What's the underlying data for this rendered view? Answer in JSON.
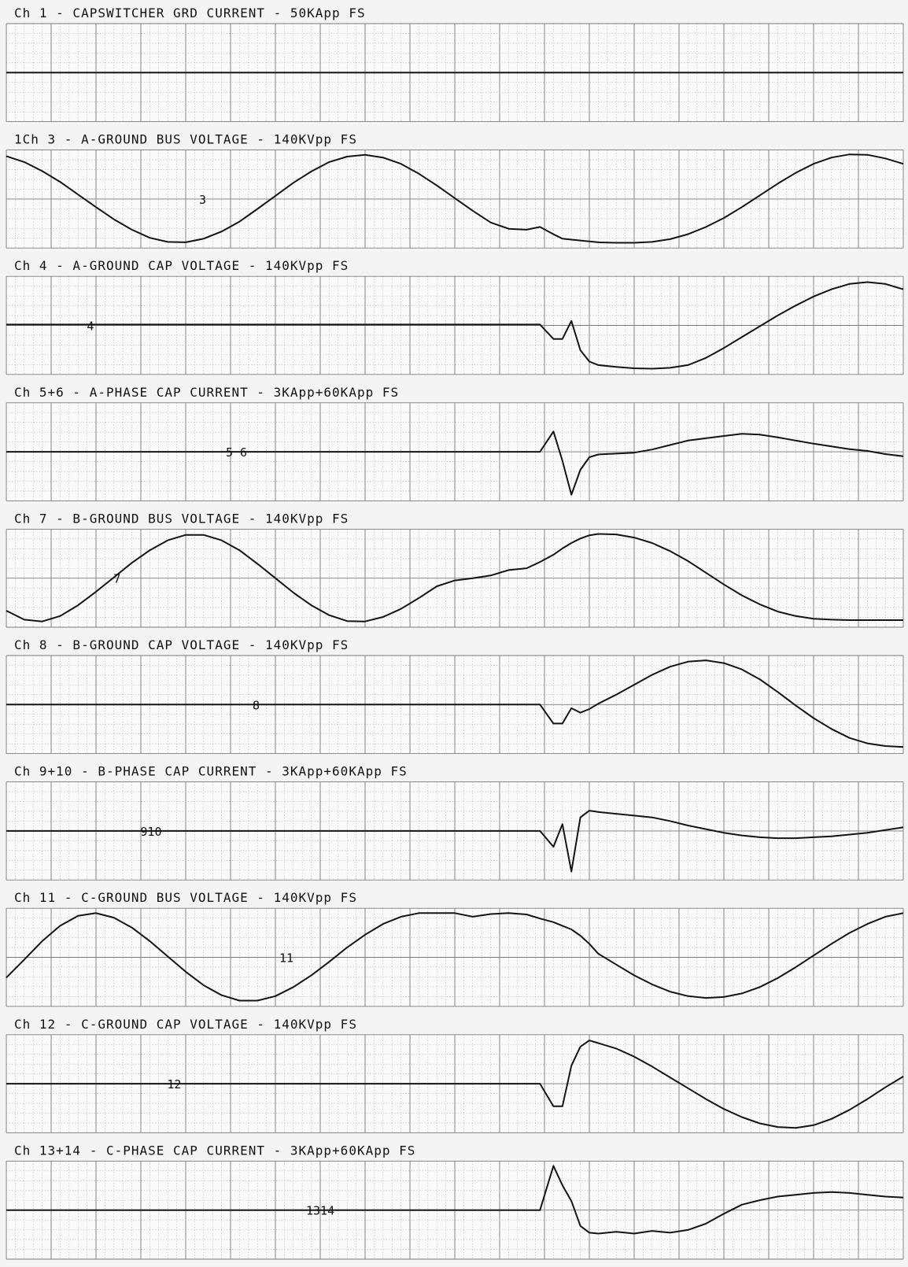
{
  "chart_data": {
    "type": "line",
    "title": "",
    "grid": true,
    "x": [
      0.0,
      0.02,
      0.04,
      0.06,
      0.08,
      0.1,
      0.12,
      0.14,
      0.16,
      0.18,
      0.2,
      0.22,
      0.24,
      0.26,
      0.28,
      0.3,
      0.32,
      0.34,
      0.36,
      0.38,
      0.4,
      0.42,
      0.44,
      0.46,
      0.48,
      0.5,
      0.52,
      0.54,
      0.56,
      0.58,
      0.595,
      0.61,
      0.62,
      0.63,
      0.64,
      0.65,
      0.66,
      0.68,
      0.7,
      0.72,
      0.74,
      0.76,
      0.78,
      0.8,
      0.82,
      0.84,
      0.86,
      0.88,
      0.9,
      0.92,
      0.94,
      0.96,
      0.98,
      1.0
    ],
    "series": [
      {
        "label": "Ch 1 - CAPSWITCHER GRD CURRENT - 50KApp FS",
        "marker": "",
        "values": [
          0.0,
          0.0,
          0.0,
          0.0,
          0.0,
          0.0,
          0.0,
          0.0,
          0.0,
          0.0,
          0.0,
          0.0,
          0.0,
          0.0,
          0.0,
          0.0,
          0.0,
          0.0,
          0.0,
          0.0,
          0.0,
          0.0,
          0.0,
          0.0,
          0.0,
          0.0,
          0.0,
          0.0,
          0.0,
          0.0,
          0.0,
          0.0,
          0.0,
          0.0,
          0.0,
          0.0,
          0.0,
          0.0,
          0.0,
          0.0,
          0.0,
          0.0,
          0.0,
          0.0,
          0.0,
          0.0,
          0.0,
          0.0,
          0.0,
          0.0,
          0.0,
          0.0,
          0.0,
          0.0
        ]
      },
      {
        "label": "1Ch 3 - A-GROUND BUS VOLTAGE - 140KVpp FS",
        "marker": "3",
        "values": [
          0.95,
          0.82,
          0.62,
          0.38,
          0.1,
          -0.18,
          -0.45,
          -0.68,
          -0.86,
          -0.95,
          -0.96,
          -0.88,
          -0.72,
          -0.5,
          -0.22,
          0.07,
          0.36,
          0.61,
          0.82,
          0.94,
          0.98,
          0.92,
          0.78,
          0.56,
          0.3,
          0.02,
          -0.26,
          -0.52,
          -0.66,
          -0.68,
          -0.62,
          -0.78,
          -0.88,
          -0.9,
          -0.92,
          -0.94,
          -0.96,
          -0.97,
          -0.97,
          -0.95,
          -0.89,
          -0.78,
          -0.62,
          -0.42,
          -0.18,
          0.08,
          0.34,
          0.58,
          0.78,
          0.92,
          0.99,
          0.98,
          0.9,
          0.78
        ]
      },
      {
        "label": "Ch 4 - A-GROUND CAP VOLTAGE - 140KVpp FS",
        "marker": "4",
        "values": [
          0.02,
          0.02,
          0.02,
          0.02,
          0.02,
          0.02,
          0.02,
          0.02,
          0.02,
          0.02,
          0.02,
          0.02,
          0.02,
          0.02,
          0.02,
          0.02,
          0.02,
          0.02,
          0.02,
          0.02,
          0.02,
          0.02,
          0.02,
          0.02,
          0.02,
          0.02,
          0.02,
          0.02,
          0.02,
          0.02,
          0.02,
          -0.3,
          -0.3,
          0.1,
          -0.55,
          -0.8,
          -0.88,
          -0.92,
          -0.95,
          -0.96,
          -0.94,
          -0.88,
          -0.72,
          -0.5,
          -0.26,
          -0.02,
          0.22,
          0.44,
          0.64,
          0.8,
          0.92,
          0.96,
          0.92,
          0.8
        ]
      },
      {
        "label": "Ch 5+6 - A-PHASE CAP CURRENT - 3KApp+60KApp FS",
        "marker": "5 6",
        "values": [
          0.0,
          0.0,
          0.0,
          0.0,
          0.0,
          0.0,
          0.0,
          0.0,
          0.0,
          0.0,
          0.0,
          0.0,
          0.0,
          0.0,
          0.0,
          0.0,
          0.0,
          0.0,
          0.0,
          0.0,
          0.0,
          0.0,
          0.0,
          0.0,
          0.0,
          0.0,
          0.0,
          0.0,
          0.0,
          0.0,
          0.0,
          0.45,
          -0.2,
          -0.95,
          -0.4,
          -0.12,
          -0.06,
          -0.04,
          -0.02,
          0.05,
          0.15,
          0.25,
          0.3,
          0.35,
          0.4,
          0.38,
          0.32,
          0.25,
          0.18,
          0.12,
          0.06,
          0.02,
          -0.05,
          -0.1
        ]
      },
      {
        "label": "Ch 7 - B-GROUND BUS VOLTAGE - 140KVpp FS",
        "marker": "7",
        "values": [
          -0.72,
          -0.92,
          -0.96,
          -0.84,
          -0.6,
          -0.3,
          0.02,
          0.34,
          0.62,
          0.84,
          0.96,
          0.96,
          0.84,
          0.62,
          0.32,
          0.0,
          -0.32,
          -0.6,
          -0.82,
          -0.95,
          -0.96,
          -0.86,
          -0.68,
          -0.44,
          -0.18,
          -0.05,
          0.0,
          0.06,
          0.18,
          0.22,
          0.36,
          0.52,
          0.66,
          0.78,
          0.88,
          0.95,
          0.98,
          0.97,
          0.9,
          0.78,
          0.6,
          0.38,
          0.12,
          -0.14,
          -0.38,
          -0.58,
          -0.74,
          -0.84,
          -0.9,
          -0.92,
          -0.93,
          -0.93,
          -0.93,
          -0.93
        ]
      },
      {
        "label": "Ch 8 - B-GROUND CAP VOLTAGE - 140KVpp FS",
        "marker": "8",
        "values": [
          0.0,
          0.0,
          0.0,
          0.0,
          0.0,
          0.0,
          0.0,
          0.0,
          0.0,
          0.0,
          0.0,
          0.0,
          0.0,
          0.0,
          0.0,
          0.0,
          0.0,
          0.0,
          0.0,
          0.0,
          0.0,
          0.0,
          0.0,
          0.0,
          0.0,
          0.0,
          0.0,
          0.0,
          0.0,
          0.0,
          0.0,
          -0.42,
          -0.42,
          -0.08,
          -0.18,
          -0.1,
          0.02,
          0.22,
          0.44,
          0.66,
          0.84,
          0.95,
          0.98,
          0.92,
          0.78,
          0.56,
          0.28,
          -0.02,
          -0.3,
          -0.54,
          -0.74,
          -0.86,
          -0.92,
          -0.94
        ]
      },
      {
        "label": "Ch 9+10 - B-PHASE CAP CURRENT - 3KApp+60KApp FS",
        "marker": "910",
        "values": [
          0.0,
          0.0,
          0.0,
          0.0,
          0.0,
          0.0,
          0.0,
          0.0,
          0.0,
          0.0,
          0.0,
          0.0,
          0.0,
          0.0,
          0.0,
          0.0,
          0.0,
          0.0,
          0.0,
          0.0,
          0.0,
          0.0,
          0.0,
          0.0,
          0.0,
          0.0,
          0.0,
          0.0,
          0.0,
          0.0,
          0.0,
          -0.35,
          0.15,
          -0.9,
          0.3,
          0.45,
          0.42,
          0.38,
          0.34,
          0.3,
          0.22,
          0.12,
          0.04,
          -0.04,
          -0.1,
          -0.14,
          -0.16,
          -0.16,
          -0.14,
          -0.12,
          -0.08,
          -0.04,
          0.02,
          0.08
        ]
      },
      {
        "label": "Ch 11 - C-GROUND BUS VOLTAGE - 140KVpp FS",
        "marker": "11",
        "values": [
          -0.45,
          -0.05,
          0.36,
          0.7,
          0.92,
          0.98,
          0.88,
          0.66,
          0.36,
          0.02,
          -0.32,
          -0.62,
          -0.84,
          -0.96,
          -0.96,
          -0.86,
          -0.66,
          -0.4,
          -0.1,
          0.22,
          0.5,
          0.74,
          0.9,
          0.98,
          0.98,
          0.98,
          0.9,
          0.96,
          0.98,
          0.95,
          0.86,
          0.78,
          0.7,
          0.62,
          0.48,
          0.3,
          0.08,
          -0.16,
          -0.4,
          -0.6,
          -0.76,
          -0.86,
          -0.9,
          -0.88,
          -0.8,
          -0.66,
          -0.46,
          -0.22,
          0.04,
          0.3,
          0.54,
          0.74,
          0.9,
          0.98
        ]
      },
      {
        "label": "Ch 12 - C-GROUND CAP VOLTAGE - 140KVpp FS",
        "marker": "12",
        "values": [
          0.0,
          0.0,
          0.0,
          0.0,
          0.0,
          0.0,
          0.0,
          0.0,
          0.0,
          0.0,
          0.0,
          0.0,
          0.0,
          0.0,
          0.0,
          0.0,
          0.0,
          0.0,
          0.0,
          0.0,
          0.0,
          0.0,
          0.0,
          0.0,
          0.0,
          0.0,
          0.0,
          0.0,
          0.0,
          0.0,
          0.0,
          -0.5,
          -0.5,
          0.4,
          0.82,
          0.96,
          0.9,
          0.78,
          0.6,
          0.38,
          0.14,
          -0.1,
          -0.34,
          -0.56,
          -0.74,
          -0.88,
          -0.96,
          -0.98,
          -0.92,
          -0.78,
          -0.58,
          -0.34,
          -0.08,
          0.16
        ]
      },
      {
        "label": "Ch 13+14 - C-PHASE CAP CURRENT - 3KApp+60KApp FS",
        "marker": "1314",
        "values": [
          0.0,
          0.0,
          0.0,
          0.0,
          0.0,
          0.0,
          0.0,
          0.0,
          0.0,
          0.0,
          0.0,
          0.0,
          0.0,
          0.0,
          0.0,
          0.0,
          0.0,
          0.0,
          0.0,
          0.0,
          0.0,
          0.0,
          0.0,
          0.0,
          0.0,
          0.0,
          0.0,
          0.0,
          0.0,
          0.0,
          0.0,
          0.98,
          0.55,
          0.2,
          -0.35,
          -0.5,
          -0.52,
          -0.48,
          -0.52,
          -0.46,
          -0.5,
          -0.44,
          -0.3,
          -0.08,
          0.12,
          0.22,
          0.3,
          0.34,
          0.38,
          0.4,
          0.38,
          0.34,
          0.3,
          0.28
        ]
      }
    ]
  }
}
